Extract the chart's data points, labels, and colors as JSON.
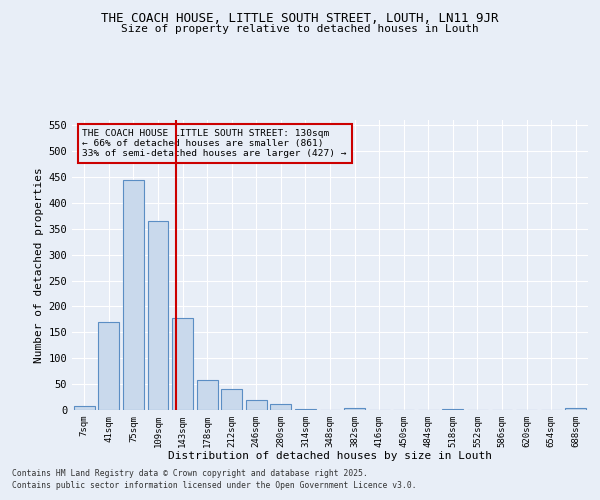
{
  "title_line1": "THE COACH HOUSE, LITTLE SOUTH STREET, LOUTH, LN11 9JR",
  "title_line2": "Size of property relative to detached houses in Louth",
  "xlabel": "Distribution of detached houses by size in Louth",
  "ylabel": "Number of detached properties",
  "bar_labels": [
    "7sqm",
    "41sqm",
    "75sqm",
    "109sqm",
    "143sqm",
    "178sqm",
    "212sqm",
    "246sqm",
    "280sqm",
    "314sqm",
    "348sqm",
    "382sqm",
    "416sqm",
    "450sqm",
    "484sqm",
    "518sqm",
    "552sqm",
    "586sqm",
    "620sqm",
    "654sqm",
    "688sqm"
  ],
  "bar_values": [
    8,
    170,
    445,
    365,
    178,
    57,
    40,
    20,
    12,
    2,
    0,
    4,
    0,
    0,
    0,
    2,
    0,
    0,
    0,
    0,
    3
  ],
  "bar_color": "#c9d9ec",
  "bar_edge_color": "#5b8ec4",
  "annotation_title": "THE COACH HOUSE LITTLE SOUTH STREET: 130sqm",
  "annotation_line2": "← 66% of detached houses are smaller (861)",
  "annotation_line3": "33% of semi-detached houses are larger (427) →",
  "vline_x": 3.75,
  "vline_color": "#cc0000",
  "ylim": [
    0,
    560
  ],
  "yticks": [
    0,
    50,
    100,
    150,
    200,
    250,
    300,
    350,
    400,
    450,
    500,
    550
  ],
  "background_color": "#e8eef7",
  "footer_line1": "Contains HM Land Registry data © Crown copyright and database right 2025.",
  "footer_line2": "Contains public sector information licensed under the Open Government Licence v3.0."
}
